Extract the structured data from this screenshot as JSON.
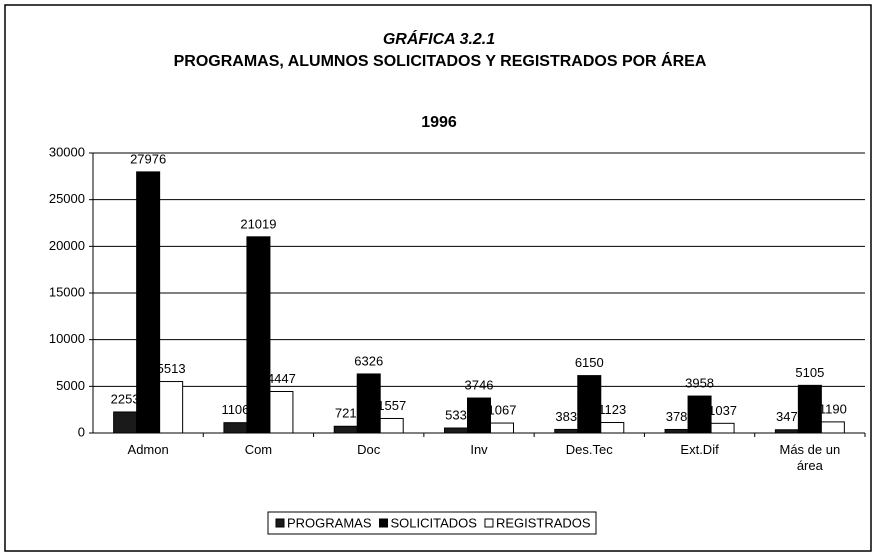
{
  "chart_data": {
    "type": "bar",
    "title": "GRÁFICA 3.2.1",
    "subtitle": [
      "PROGRAMAS, ALUMNOS SOLICITADOS Y REGISTRADOS POR ÁREA",
      "1996"
    ],
    "categories": [
      "Admon",
      "Com",
      "Doc",
      "Inv",
      "Des.Tec",
      "Ext.Dif",
      "Más de un área"
    ],
    "series": [
      {
        "name": "PROGRAMAS",
        "color": "#1a1a1a",
        "values": [
          2253,
          1106,
          721,
          533,
          383,
          378,
          347
        ]
      },
      {
        "name": "SOLICITADOS",
        "color": "#000000",
        "values": [
          27976,
          21019,
          6326,
          3746,
          6150,
          3958,
          5105
        ]
      },
      {
        "name": "REGISTRADOS",
        "color": "#ffffff",
        "values": [
          5513,
          4447,
          1557,
          1067,
          1123,
          1037,
          1190
        ]
      }
    ],
    "ylim": [
      0,
      30000
    ],
    "yticks": [
      0,
      5000,
      10000,
      15000,
      20000,
      25000,
      30000
    ],
    "grid": true,
    "legend": "bottom"
  }
}
